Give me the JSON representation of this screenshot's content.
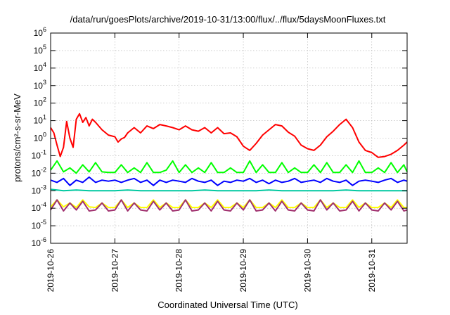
{
  "chart_data": {
    "type": "line",
    "title": "/data/run/goesPlots/archive/2019-10-31/13:00/flux/../flux/5daysMoonFluxes.txt",
    "xlabel": "Coordinated Universal Time (UTC)",
    "ylabel": "protons/cm²-s-sr-MeV",
    "y_scale": "log",
    "ylim_exp": [
      -6,
      6
    ],
    "y_tick_exponents": [
      -6,
      -5,
      -4,
      -3,
      -2,
      -1,
      0,
      1,
      2,
      3,
      4,
      5,
      6
    ],
    "x_tick_labels": [
      "2019-10-26",
      "2019-10-27",
      "2019-10-28",
      "2019-10-29",
      "2019-10-30",
      "2019-10-31"
    ],
    "xlim_days": [
      0,
      5.55
    ],
    "grid": true,
    "legend": "none",
    "series": [
      {
        "color": "#ff0000",
        "x": [
          0.0,
          0.05,
          0.1,
          0.15,
          0.2,
          0.25,
          0.3,
          0.35,
          0.4,
          0.45,
          0.5,
          0.55,
          0.6,
          0.65,
          0.7,
          0.8,
          0.9,
          1.0,
          1.05,
          1.1,
          1.15,
          1.2,
          1.3,
          1.4,
          1.5,
          1.6,
          1.7,
          1.8,
          1.9,
          2.0,
          2.1,
          2.2,
          2.3,
          2.4,
          2.5,
          2.6,
          2.7,
          2.8,
          2.9,
          3.0,
          3.1,
          3.2,
          3.3,
          3.4,
          3.5,
          3.6,
          3.7,
          3.8,
          3.9,
          4.0,
          4.1,
          4.2,
          4.3,
          4.4,
          4.5,
          4.6,
          4.7,
          4.8,
          4.9,
          5.0,
          5.1,
          5.2,
          5.3,
          5.4,
          5.5,
          5.55
        ],
        "y": [
          4,
          2,
          0.4,
          0.09,
          0.3,
          9,
          1,
          0.3,
          12,
          25,
          8,
          15,
          5,
          12,
          8,
          3,
          1.5,
          1.2,
          0.6,
          0.9,
          1.1,
          2,
          4,
          2,
          5,
          3.5,
          6,
          5,
          4,
          3,
          5,
          3,
          2.5,
          4,
          2,
          4,
          1.8,
          2,
          1.2,
          0.35,
          0.2,
          0.5,
          1.5,
          3,
          6,
          5,
          2.2,
          1.3,
          0.4,
          0.25,
          0.2,
          0.4,
          1.2,
          2.5,
          6,
          12,
          4,
          0.6,
          0.2,
          0.15,
          0.08,
          0.09,
          0.12,
          0.2,
          0.4,
          0.6
        ]
      },
      {
        "color": "#00ff00",
        "x": [
          0.0,
          0.1,
          0.2,
          0.3,
          0.4,
          0.5,
          0.6,
          0.7,
          0.8,
          0.9,
          1.0,
          1.1,
          1.2,
          1.3,
          1.4,
          1.5,
          1.6,
          1.7,
          1.8,
          1.9,
          2.0,
          2.1,
          2.2,
          2.3,
          2.4,
          2.5,
          2.6,
          2.7,
          2.8,
          2.9,
          3.0,
          3.1,
          3.2,
          3.3,
          3.4,
          3.5,
          3.6,
          3.7,
          3.8,
          3.9,
          4.0,
          4.1,
          4.2,
          4.3,
          4.4,
          4.5,
          4.6,
          4.7,
          4.8,
          4.9,
          5.0,
          5.1,
          5.2,
          5.3,
          5.4,
          5.5,
          5.55
        ],
        "y": [
          0.015,
          0.05,
          0.012,
          0.02,
          0.01,
          0.03,
          0.012,
          0.04,
          0.012,
          0.011,
          0.011,
          0.03,
          0.011,
          0.02,
          0.011,
          0.04,
          0.011,
          0.011,
          0.015,
          0.05,
          0.011,
          0.03,
          0.011,
          0.02,
          0.011,
          0.04,
          0.011,
          0.011,
          0.02,
          0.011,
          0.011,
          0.05,
          0.011,
          0.03,
          0.011,
          0.011,
          0.04,
          0.011,
          0.02,
          0.011,
          0.011,
          0.03,
          0.011,
          0.04,
          0.011,
          0.011,
          0.03,
          0.011,
          0.05,
          0.011,
          0.011,
          0.02,
          0.011,
          0.04,
          0.011,
          0.03,
          0.012
        ]
      },
      {
        "color": "#0000ff",
        "x": [
          0.0,
          0.1,
          0.2,
          0.3,
          0.4,
          0.5,
          0.6,
          0.7,
          0.8,
          0.9,
          1.0,
          1.1,
          1.2,
          1.3,
          1.4,
          1.5,
          1.6,
          1.7,
          1.8,
          1.9,
          2.0,
          2.1,
          2.2,
          2.3,
          2.4,
          2.5,
          2.6,
          2.7,
          2.8,
          2.9,
          3.0,
          3.1,
          3.2,
          3.3,
          3.4,
          3.5,
          3.6,
          3.7,
          3.8,
          3.9,
          4.0,
          4.1,
          4.2,
          4.3,
          4.4,
          4.5,
          4.6,
          4.7,
          4.8,
          4.9,
          5.0,
          5.1,
          5.2,
          5.3,
          5.4,
          5.5,
          5.55
        ],
        "y": [
          0.004,
          0.003,
          0.005,
          0.002,
          0.004,
          0.003,
          0.006,
          0.003,
          0.004,
          0.0035,
          0.004,
          0.003,
          0.004,
          0.005,
          0.003,
          0.004,
          0.002,
          0.004,
          0.003,
          0.004,
          0.0035,
          0.003,
          0.005,
          0.0035,
          0.003,
          0.004,
          0.002,
          0.0035,
          0.003,
          0.004,
          0.0035,
          0.005,
          0.003,
          0.004,
          0.0025,
          0.004,
          0.003,
          0.0035,
          0.005,
          0.003,
          0.0035,
          0.004,
          0.003,
          0.005,
          0.0035,
          0.003,
          0.004,
          0.002,
          0.0035,
          0.004,
          0.0035,
          0.003,
          0.004,
          0.005,
          0.003,
          0.004,
          0.0035
        ]
      },
      {
        "color": "#00c8a0",
        "x": [
          0.0,
          0.2,
          0.4,
          0.6,
          0.8,
          1.0,
          1.2,
          1.4,
          1.6,
          1.8,
          2.0,
          2.2,
          2.4,
          2.6,
          2.8,
          3.0,
          3.2,
          3.4,
          3.6,
          3.8,
          4.0,
          4.2,
          4.4,
          4.6,
          4.8,
          5.0,
          5.2,
          5.4,
          5.55
        ],
        "y": [
          0.0012,
          0.001,
          0.0011,
          0.001,
          0.001,
          0.001,
          0.0011,
          0.001,
          0.001,
          0.001,
          0.001,
          0.001,
          0.0011,
          0.001,
          0.001,
          0.001,
          0.001,
          0.0011,
          0.001,
          0.001,
          0.001,
          0.001,
          0.001,
          0.0011,
          0.001,
          0.001,
          0.001,
          0.001,
          0.001
        ]
      },
      {
        "color": "#ffff00",
        "x": [
          0.0,
          0.1,
          0.2,
          0.3,
          0.4,
          0.5,
          0.6,
          0.7,
          0.8,
          0.9,
          1.0,
          1.1,
          1.2,
          1.3,
          1.4,
          1.5,
          1.6,
          1.7,
          1.8,
          1.9,
          2.0,
          2.1,
          2.2,
          2.3,
          2.4,
          2.5,
          2.6,
          2.7,
          2.8,
          2.9,
          3.0,
          3.1,
          3.2,
          3.3,
          3.4,
          3.5,
          3.6,
          3.7,
          3.8,
          3.9,
          4.0,
          4.1,
          4.2,
          4.3,
          4.4,
          4.5,
          4.6,
          4.7,
          4.8,
          4.9,
          5.0,
          5.1,
          5.2,
          5.3,
          5.4,
          5.5,
          5.55
        ],
        "y": [
          0.00012,
          0.0003,
          0.00012,
          0.0002,
          0.00011,
          0.0003,
          0.00012,
          0.00011,
          0.0002,
          0.00011,
          0.00011,
          0.0003,
          0.00011,
          0.0002,
          0.00011,
          0.00011,
          0.0003,
          0.00011,
          0.0002,
          0.00011,
          0.00011,
          0.0003,
          0.00011,
          0.00011,
          0.0002,
          0.00011,
          0.0003,
          0.00011,
          0.00011,
          0.0002,
          0.00011,
          0.0003,
          0.00011,
          0.00011,
          0.0002,
          0.00011,
          0.0003,
          0.00011,
          0.00011,
          0.0002,
          0.00011,
          0.00011,
          0.0003,
          0.00011,
          0.0002,
          0.00011,
          0.00011,
          0.0003,
          0.00011,
          0.0002,
          0.00011,
          0.00011,
          0.0002,
          0.00011,
          0.0003,
          0.00011,
          0.00011
        ]
      },
      {
        "color": "#a0306e",
        "x": [
          0.0,
          0.1,
          0.2,
          0.3,
          0.4,
          0.5,
          0.6,
          0.7,
          0.8,
          0.9,
          1.0,
          1.1,
          1.2,
          1.3,
          1.4,
          1.5,
          1.6,
          1.7,
          1.8,
          1.9,
          2.0,
          2.1,
          2.2,
          2.3,
          2.4,
          2.5,
          2.6,
          2.7,
          2.8,
          2.9,
          3.0,
          3.1,
          3.2,
          3.3,
          3.4,
          3.5,
          3.6,
          3.7,
          3.8,
          3.9,
          4.0,
          4.1,
          4.2,
          4.3,
          4.4,
          4.5,
          4.6,
          4.7,
          4.8,
          4.9,
          5.0,
          5.1,
          5.2,
          5.3,
          5.4,
          5.5,
          5.55
        ],
        "y": [
          8e-05,
          0.0003,
          7e-05,
          0.0002,
          8e-05,
          0.00025,
          7e-05,
          8e-05,
          0.0002,
          7e-05,
          8e-05,
          0.0003,
          7e-05,
          0.0002,
          8e-05,
          7e-05,
          0.00025,
          8e-05,
          0.0002,
          7e-05,
          8e-05,
          0.0003,
          7e-05,
          8e-05,
          0.0002,
          7e-05,
          0.00025,
          8e-05,
          7e-05,
          0.0002,
          8e-05,
          0.0003,
          7e-05,
          8e-05,
          0.0002,
          7e-05,
          0.00025,
          8e-05,
          7e-05,
          0.0002,
          8e-05,
          7e-05,
          0.0003,
          8e-05,
          0.0002,
          7e-05,
          8e-05,
          0.00025,
          7e-05,
          0.0002,
          8e-05,
          7e-05,
          0.0002,
          8e-05,
          0.00025,
          7e-05,
          8e-05
        ]
      }
    ]
  }
}
